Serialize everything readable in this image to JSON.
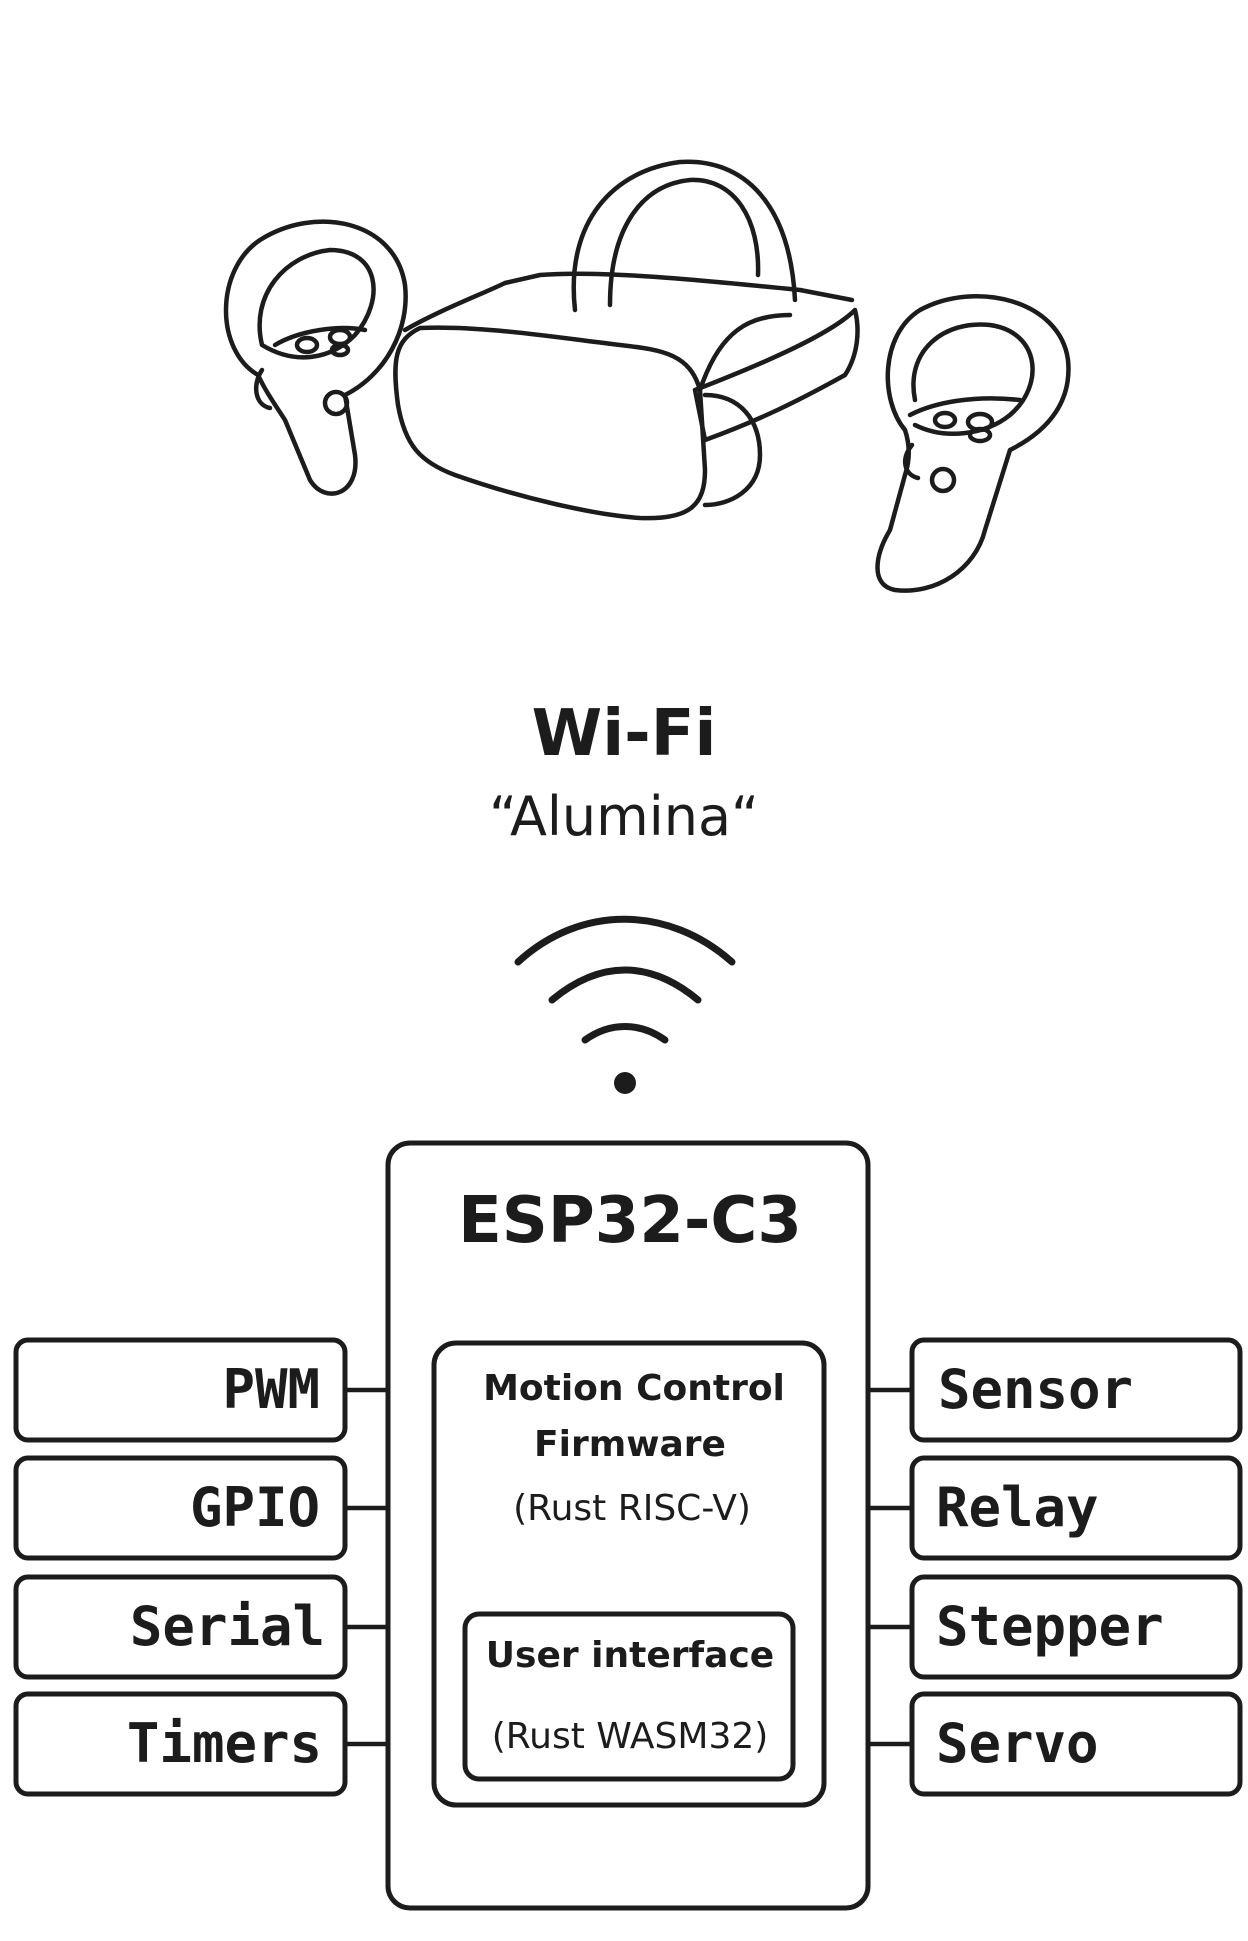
{
  "headset": {
    "icon": "vr-headset-icon",
    "controller_left_icon": "vr-controller-left-icon",
    "controller_right_icon": "vr-controller-right-icon"
  },
  "network": {
    "label": "Wi-Fi",
    "ssid": "“Alumina“",
    "icon": "wifi-icon"
  },
  "chip": {
    "title": "ESP32-C3",
    "firmware": {
      "title_line1": "Motion Control",
      "title_line2": "Firmware",
      "subtitle": "(Rust RISC-V)"
    },
    "ui": {
      "title": "User interface",
      "subtitle": "(Rust WASM32)"
    }
  },
  "left_ports": [
    "PWM",
    "GPIO",
    "Serial",
    "Timers"
  ],
  "right_ports": [
    "Sensor",
    "Relay",
    "Stepper",
    "Servo"
  ],
  "colors": {
    "stroke": "#1c1c1c",
    "background": "#ffffff"
  }
}
